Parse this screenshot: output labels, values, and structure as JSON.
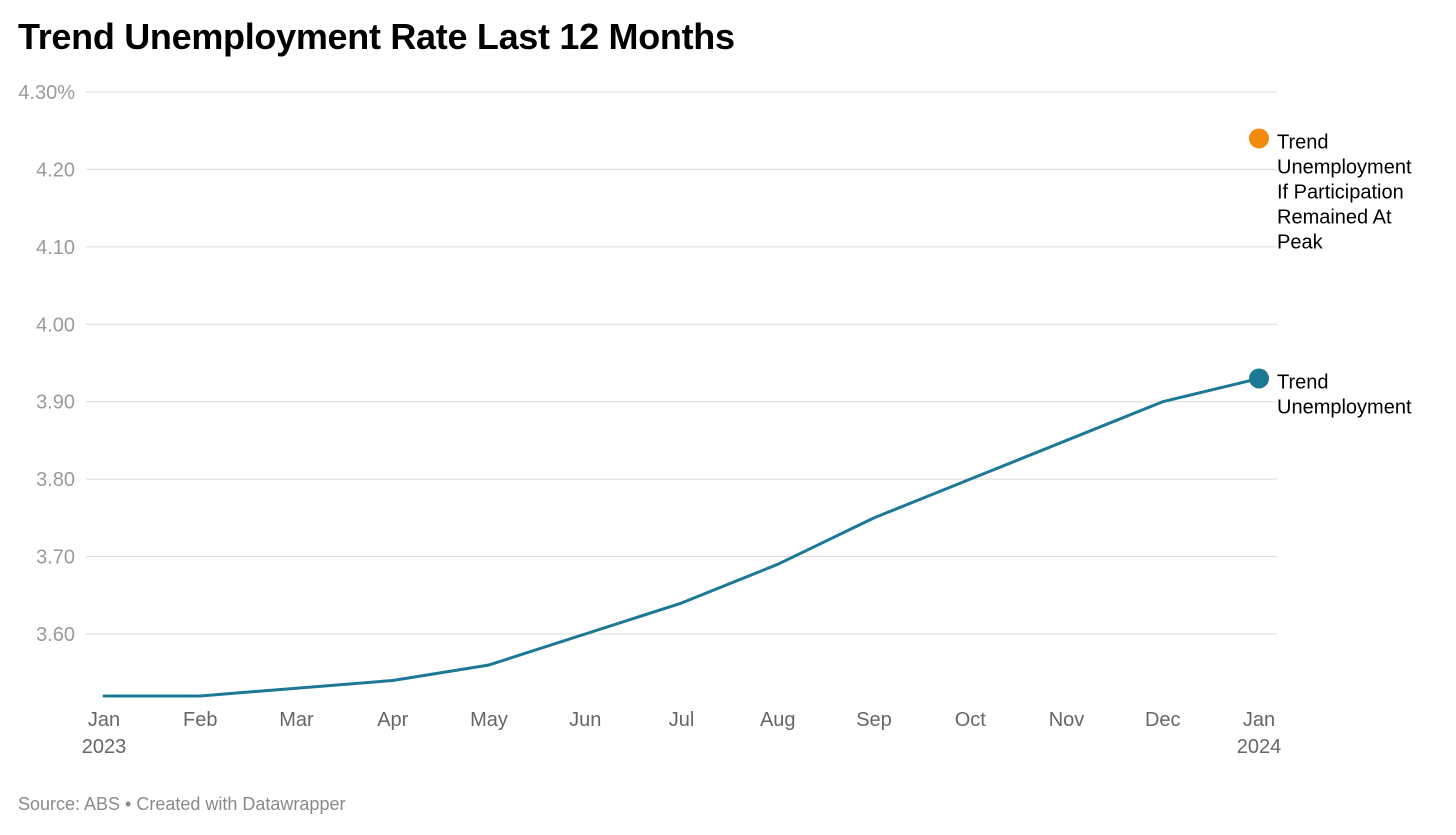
{
  "chart_data": {
    "type": "line",
    "title": "Trend Unemployment Rate Last 12 Months",
    "source": "Source: ABS • Created with Datawrapper",
    "categories": [
      "Jan",
      "Feb",
      "Mar",
      "Apr",
      "May",
      "Jun",
      "Jul",
      "Aug",
      "Sep",
      "Oct",
      "Nov",
      "Dec",
      "Jan"
    ],
    "category_years": [
      "2023",
      "",
      "",
      "",
      "",
      "",
      "",
      "",
      "",
      "",
      "",
      "",
      "2024"
    ],
    "y_ticks": [
      "4.30%",
      "4.20",
      "4.10",
      "4.00",
      "3.90",
      "3.80",
      "3.70",
      "3.60"
    ],
    "y_tick_values": [
      4.3,
      4.2,
      4.1,
      4.0,
      3.9,
      3.8,
      3.7,
      3.6
    ],
    "ylim": [
      3.52,
      4.3
    ],
    "grid": true,
    "series": [
      {
        "name": "Trend Unemployment",
        "label_lines": [
          "Trend",
          "Unemployment"
        ],
        "color": "#1d7896",
        "values": [
          3.52,
          3.52,
          3.53,
          3.54,
          3.56,
          3.6,
          3.64,
          3.69,
          3.75,
          3.8,
          3.85,
          3.9,
          3.93
        ]
      },
      {
        "name": "Trend Unemployment If Participation Remained At Peak",
        "label_lines": [
          "Trend",
          "Unemployment",
          "If Participation",
          "Remained At",
          "Peak"
        ],
        "color": "#f28a0c",
        "point_index": 12,
        "value": 4.24
      }
    ]
  }
}
